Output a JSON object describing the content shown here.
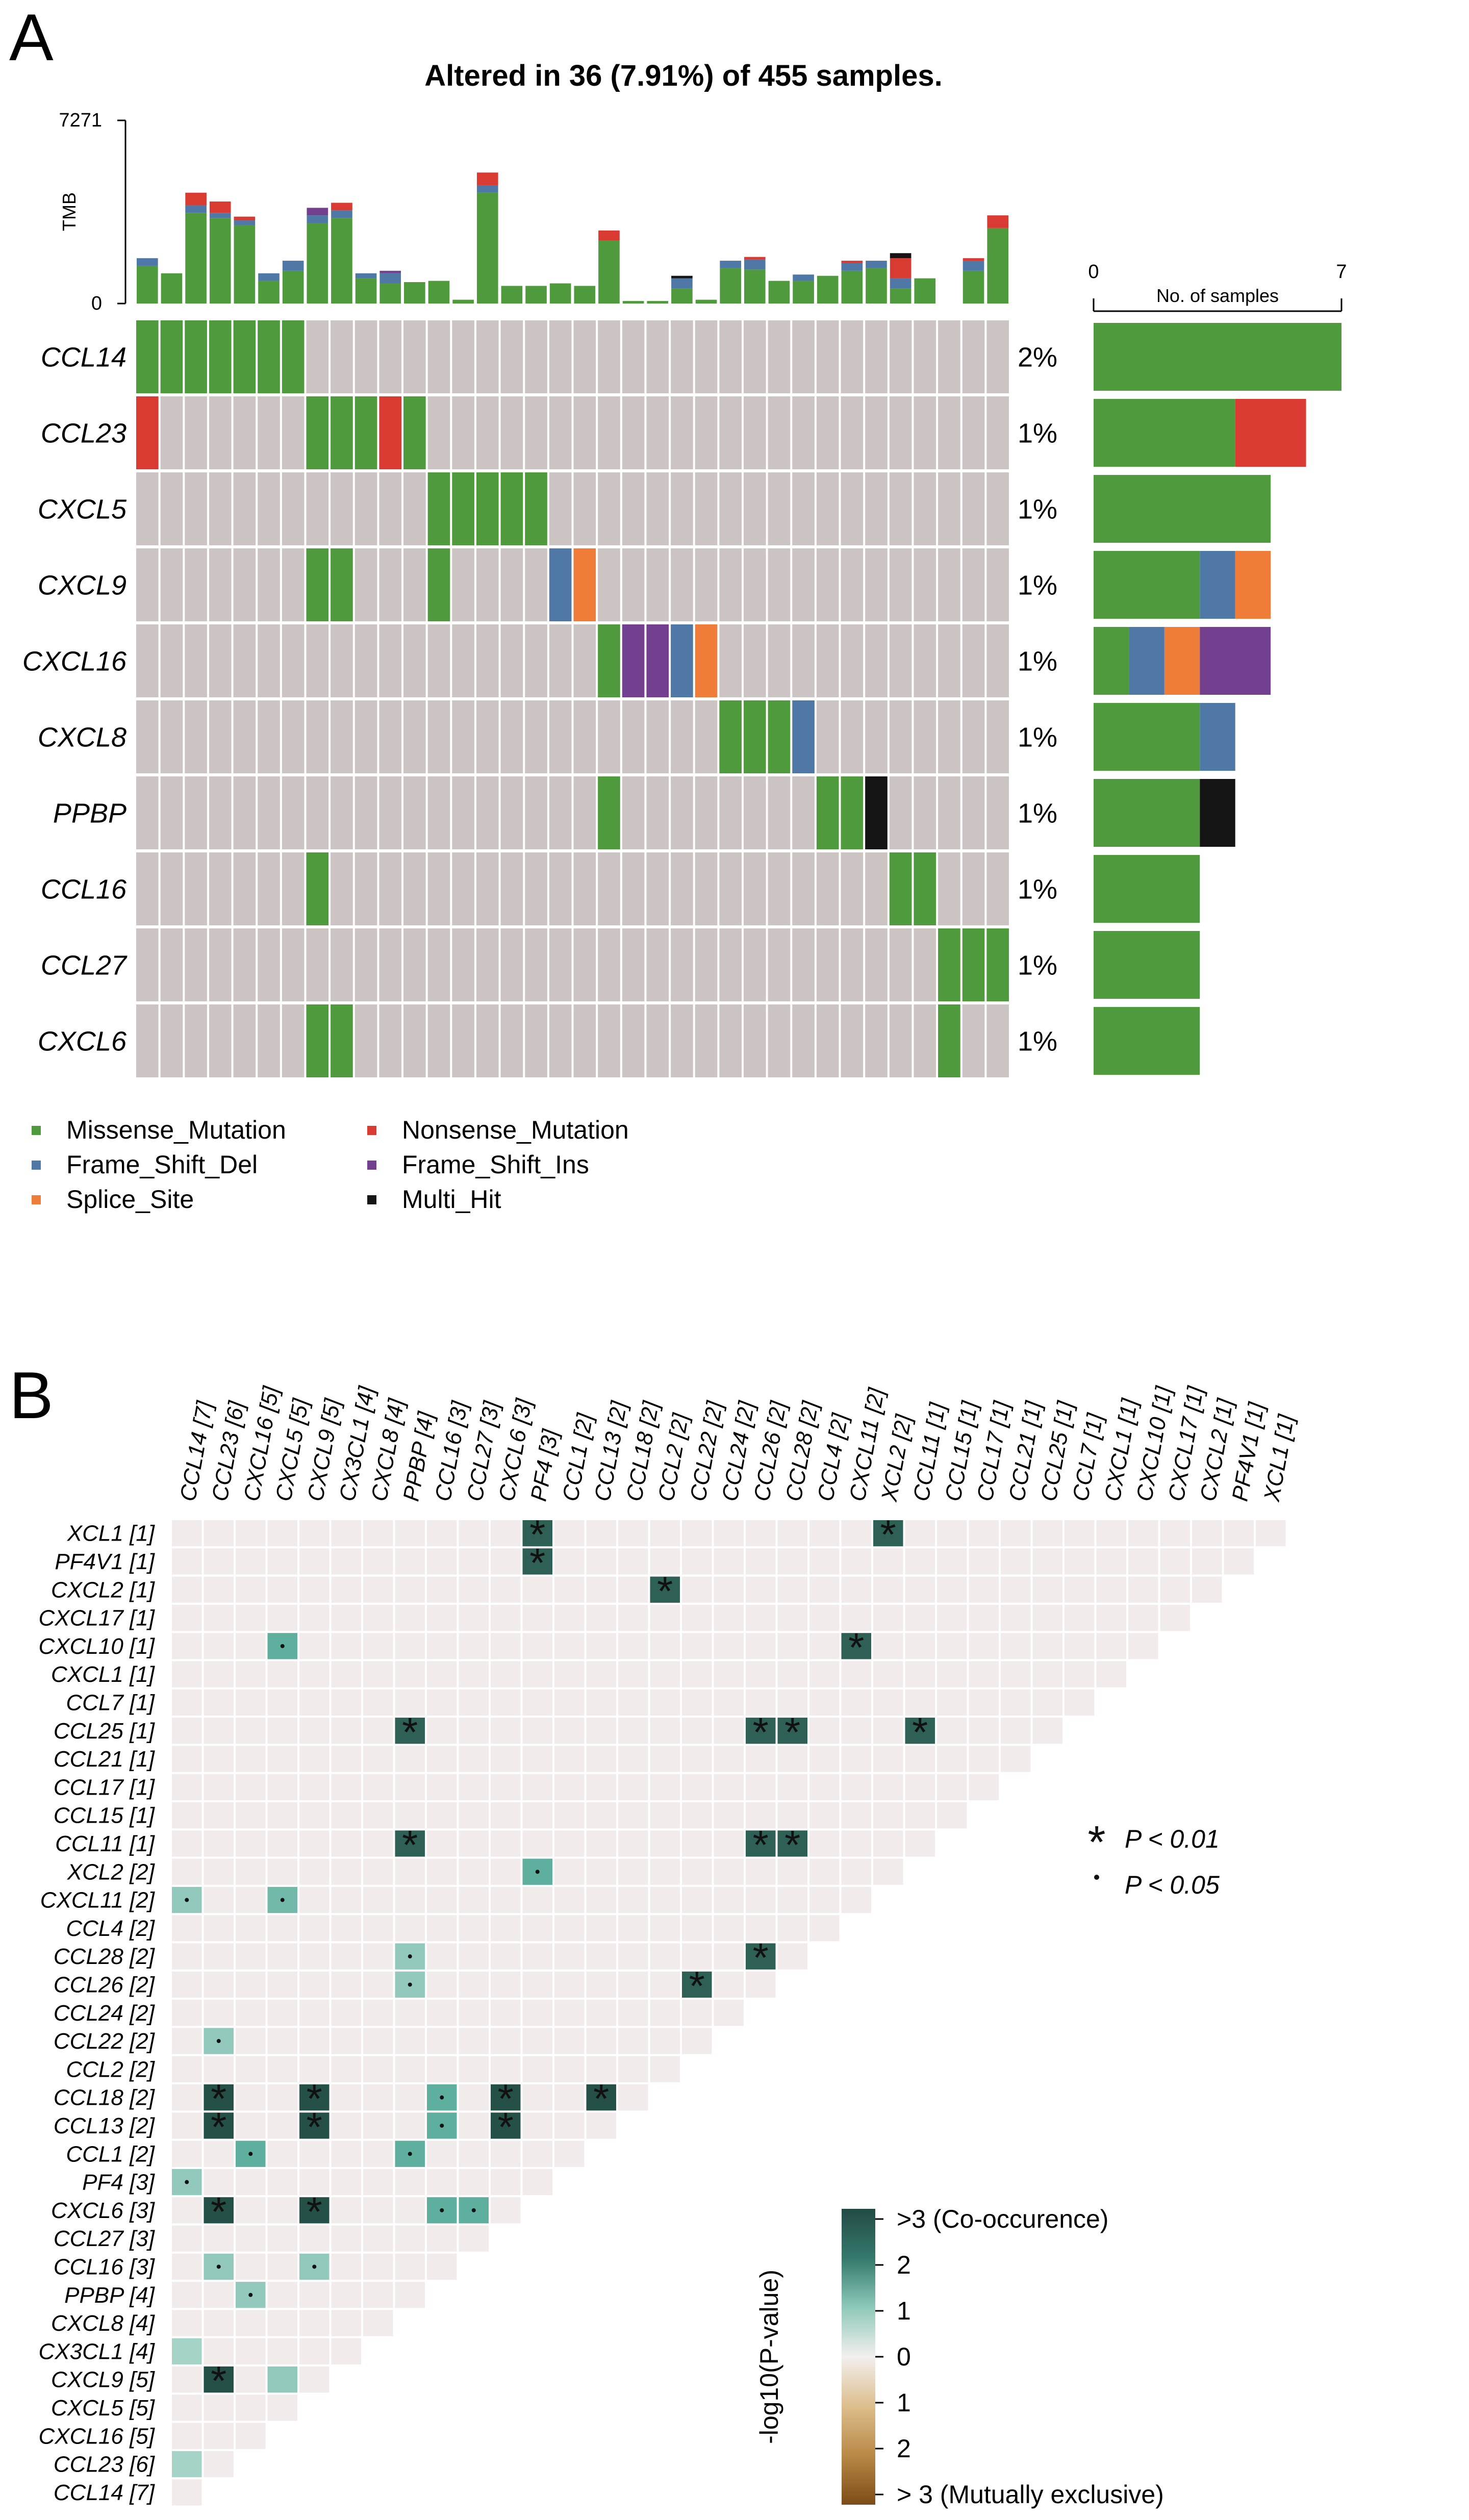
{
  "figure": {
    "panel_a_label": "A",
    "panel_b_label": "B"
  },
  "colors": {
    "Missense_Mutation": "#4f9a3c",
    "Nonsense_Mutation": "#d93a32",
    "Frame_Shift_Del": "#4f78a6",
    "Frame_Shift_Ins": "#733f8f",
    "Splice_Site": "#ef7d39",
    "Multi_Hit": "#141414",
    "background": "#cbc4c3",
    "matrix_base": "#f1eceb"
  },
  "chart_data": [
    {
      "type": "oncoplot",
      "title": "Altered in 36 (7.91%) of 455 samples.",
      "tmb_axis": {
        "label": "TMB",
        "ticks": [
          "7271",
          "0"
        ],
        "range": [
          0,
          7271
        ]
      },
      "side_axis": {
        "label": "No. of samples",
        "ticks": [
          "0",
          "7"
        ],
        "range": [
          0,
          7
        ]
      },
      "num_samples": 36,
      "genes": [
        "CCL14",
        "CCL23",
        "CXCL5",
        "CXCL9",
        "CXCL16",
        "CXCL8",
        "PPBP",
        "CCL16",
        "CCL27",
        "CXCL6"
      ],
      "percentages": [
        "2%",
        "1%",
        "1%",
        "1%",
        "1%",
        "1%",
        "1%",
        "1%",
        "1%",
        "1%"
      ],
      "mutations": [
        {
          "gene": "CCL14",
          "samples": [
            0,
            1,
            2,
            3,
            4,
            5,
            6
          ],
          "types": [
            "Missense_Mutation",
            "Missense_Mutation",
            "Missense_Mutation",
            "Missense_Mutation",
            "Missense_Mutation",
            "Missense_Mutation",
            "Missense_Mutation"
          ]
        },
        {
          "gene": "CCL23",
          "samples": [
            0,
            7,
            8,
            9,
            10,
            11
          ],
          "types": [
            "Nonsense_Mutation",
            "Missense_Mutation",
            "Missense_Mutation",
            "Missense_Mutation",
            "Nonsense_Mutation",
            "Missense_Mutation"
          ]
        },
        {
          "gene": "CXCL5",
          "samples": [
            12,
            13,
            14,
            15,
            16
          ],
          "types": [
            "Missense_Mutation",
            "Missense_Mutation",
            "Missense_Mutation",
            "Missense_Mutation",
            "Missense_Mutation"
          ]
        },
        {
          "gene": "CXCL9",
          "samples": [
            7,
            8,
            12,
            17,
            18
          ],
          "types": [
            "Missense_Mutation",
            "Missense_Mutation",
            "Missense_Mutation",
            "Frame_Shift_Del",
            "Splice_Site"
          ]
        },
        {
          "gene": "CXCL16",
          "samples": [
            19,
            20,
            21,
            22,
            23
          ],
          "types": [
            "Missense_Mutation",
            "Frame_Shift_Ins",
            "Frame_Shift_Ins",
            "Frame_Shift_Del",
            "Splice_Site"
          ]
        },
        {
          "gene": "CXCL8",
          "samples": [
            24,
            25,
            26,
            27
          ],
          "types": [
            "Missense_Mutation",
            "Missense_Mutation",
            "Missense_Mutation",
            "Frame_Shift_Del"
          ]
        },
        {
          "gene": "PPBP",
          "samples": [
            19,
            28,
            29,
            30
          ],
          "types": [
            "Missense_Mutation",
            "Missense_Mutation",
            "Missense_Mutation",
            "Multi_Hit"
          ]
        },
        {
          "gene": "CCL16",
          "samples": [
            7,
            31,
            32
          ],
          "types": [
            "Missense_Mutation",
            "Missense_Mutation",
            "Missense_Mutation"
          ]
        },
        {
          "gene": "CCL27",
          "samples": [
            33,
            34,
            35
          ],
          "types": [
            "Missense_Mutation",
            "Missense_Mutation",
            "Missense_Mutation"
          ]
        },
        {
          "gene": "CXCL6",
          "samples": [
            7,
            8,
            33
          ],
          "types": [
            "Missense_Mutation",
            "Missense_Mutation",
            "Missense_Mutation"
          ]
        }
      ],
      "tmb_values": [
        [
          1500,
          300,
          0,
          0,
          0,
          0
        ],
        [
          1200,
          0,
          0,
          0,
          0,
          0
        ],
        [
          3600,
          300,
          500,
          0,
          0,
          0
        ],
        [
          3400,
          200,
          450,
          0,
          0,
          0
        ],
        [
          3100,
          200,
          150,
          0,
          0,
          0
        ],
        [
          900,
          300,
          0,
          0,
          0,
          0
        ],
        [
          1300,
          400,
          0,
          0,
          0,
          0
        ],
        [
          3200,
          300,
          0,
          300,
          0,
          0
        ],
        [
          3400,
          300,
          300,
          0,
          0,
          0
        ],
        [
          1000,
          200,
          0,
          0,
          0,
          0
        ],
        [
          800,
          400,
          0,
          100,
          0,
          0
        ],
        [
          850,
          0,
          0,
          0,
          0,
          0
        ],
        [
          900,
          0,
          0,
          0,
          0,
          0
        ],
        [
          150,
          0,
          0,
          0,
          0,
          0
        ],
        [
          4400,
          300,
          500,
          0,
          0,
          0
        ],
        [
          700,
          0,
          0,
          0,
          0,
          0
        ],
        [
          700,
          0,
          0,
          0,
          0,
          0
        ],
        [
          800,
          0,
          0,
          0,
          0,
          0
        ],
        [
          700,
          0,
          0,
          0,
          0,
          0
        ],
        [
          2500,
          0,
          400,
          0,
          0,
          0
        ],
        [
          100,
          0,
          0,
          0,
          0,
          0
        ],
        [
          100,
          0,
          0,
          0,
          0,
          0
        ],
        [
          600,
          400,
          0,
          0,
          0,
          100
        ],
        [
          150,
          0,
          0,
          0,
          0,
          0
        ],
        [
          1400,
          300,
          0,
          0,
          0,
          0
        ],
        [
          1350,
          400,
          100,
          0,
          0,
          0
        ],
        [
          900,
          0,
          0,
          0,
          0,
          0
        ],
        [
          900,
          250,
          0,
          0,
          0,
          0
        ],
        [
          1100,
          0,
          0,
          0,
          0,
          0
        ],
        [
          1300,
          300,
          100,
          0,
          0,
          0
        ],
        [
          1400,
          300,
          0,
          0,
          0,
          0
        ],
        [
          600,
          400,
          800,
          0,
          0,
          200
        ],
        [
          1000,
          0,
          0,
          0,
          0,
          0
        ],
        [
          0,
          0,
          0,
          0,
          0,
          0
        ],
        [
          1300,
          400,
          100,
          0,
          0,
          0
        ],
        [
          3000,
          0,
          500,
          0,
          0,
          0
        ]
      ],
      "tmb_series_order": [
        "Missense_Mutation",
        "Frame_Shift_Del",
        "Nonsense_Mutation",
        "Frame_Shift_Ins",
        "Splice_Site",
        "Multi_Hit"
      ],
      "side_bars": [
        {
          "gene": "CCL14",
          "segments": [
            {
              "type": "Missense_Mutation",
              "count": 7
            }
          ]
        },
        {
          "gene": "CCL23",
          "segments": [
            {
              "type": "Missense_Mutation",
              "count": 4
            },
            {
              "type": "Nonsense_Mutation",
              "count": 2
            }
          ]
        },
        {
          "gene": "CXCL5",
          "segments": [
            {
              "type": "Missense_Mutation",
              "count": 5
            }
          ]
        },
        {
          "gene": "CXCL9",
          "segments": [
            {
              "type": "Missense_Mutation",
              "count": 3
            },
            {
              "type": "Frame_Shift_Del",
              "count": 1
            },
            {
              "type": "Splice_Site",
              "count": 1
            }
          ]
        },
        {
          "gene": "CXCL16",
          "segments": [
            {
              "type": "Missense_Mutation",
              "count": 1
            },
            {
              "type": "Frame_Shift_Del",
              "count": 1
            },
            {
              "type": "Splice_Site",
              "count": 1
            },
            {
              "type": "Frame_Shift_Ins",
              "count": 2
            }
          ]
        },
        {
          "gene": "CXCL8",
          "segments": [
            {
              "type": "Missense_Mutation",
              "count": 3
            },
            {
              "type": "Frame_Shift_Del",
              "count": 1
            }
          ]
        },
        {
          "gene": "PPBP",
          "segments": [
            {
              "type": "Missense_Mutation",
              "count": 3
            },
            {
              "type": "Multi_Hit",
              "count": 1
            }
          ]
        },
        {
          "gene": "CCL16",
          "segments": [
            {
              "type": "Missense_Mutation",
              "count": 3
            }
          ]
        },
        {
          "gene": "CCL27",
          "segments": [
            {
              "type": "Missense_Mutation",
              "count": 3
            }
          ]
        },
        {
          "gene": "CXCL6",
          "segments": [
            {
              "type": "Missense_Mutation",
              "count": 3
            }
          ]
        }
      ],
      "legend": [
        {
          "type": "Missense_Mutation",
          "label": "Missense_Mutation"
        },
        {
          "type": "Nonsense_Mutation",
          "label": "Nonsense_Mutation"
        },
        {
          "type": "Frame_Shift_Del",
          "label": "Frame_Shift_Del"
        },
        {
          "type": "Frame_Shift_Ins",
          "label": "Frame_Shift_Ins"
        },
        {
          "type": "Splice_Site",
          "label": "Splice_Site"
        },
        {
          "type": "Multi_Hit",
          "label": "Multi_Hit"
        }
      ]
    },
    {
      "type": "heatmap",
      "columns": [
        "CCL14 [7]",
        "CCL23 [6]",
        "CXCL16 [5]",
        "CXCL5 [5]",
        "CXCL9 [5]",
        "CX3CL1 [4]",
        "CXCL8 [4]",
        "PPBP [4]",
        "CCL16 [3]",
        "CCL27 [3]",
        "CXCL6 [3]",
        "PF4 [3]",
        "CCL1 [2]",
        "CCL13 [2]",
        "CCL18 [2]",
        "CCL2 [2]",
        "CCL22 [2]",
        "CCL24 [2]",
        "CCL26 [2]",
        "CCL28 [2]",
        "CCL4 [2]",
        "CXCL11 [2]",
        "XCL2 [2]",
        "CCL11 [1]",
        "CCL15 [1]",
        "CCL17 [1]",
        "CCL21 [1]",
        "CCL25 [1]",
        "CCL7 [1]",
        "CXCL1 [1]",
        "CXCL10 [1]",
        "CXCL17 [1]",
        "CXCL2 [1]",
        "PF4V1 [1]",
        "XCL1 [1]"
      ],
      "rows": [
        "XCL1 [1]",
        "PF4V1 [1]",
        "CXCL2 [1]",
        "CXCL17 [1]",
        "CXCL10 [1]",
        "CXCL1 [1]",
        "CCL7 [1]",
        "CCL25 [1]",
        "CCL21 [1]",
        "CCL17 [1]",
        "CCL15 [1]",
        "CCL11 [1]",
        "XCL2 [2]",
        "CXCL11 [2]",
        "CCL4 [2]",
        "CCL28 [2]",
        "CCL26 [2]",
        "CCL24 [2]",
        "CCL22 [2]",
        "CCL2 [2]",
        "CCL18 [2]",
        "CCL13 [2]",
        "CCL1 [2]",
        "PF4 [3]",
        "CXCL6 [3]",
        "CCL27 [3]",
        "CCL16 [3]",
        "PPBP [4]",
        "CXCL8 [4]",
        "CX3CL1 [4]",
        "CXCL9 [5]",
        "CXCL5 [5]",
        "CXCL16 [5]",
        "CCL23 [6]",
        "CCL14 [7]"
      ],
      "value_label": "-log10(P-value)",
      "colorbar_ticks": [
        ">3 (Co-occurence)",
        "2",
        "1",
        "0",
        "1",
        "2",
        "> 3 (Mutually exclusive)"
      ],
      "significance_legend": [
        {
          "symbol": "*",
          "label": "P < 0.01"
        },
        {
          "symbol": "·",
          "label": "P < 0.05"
        }
      ],
      "cells": [
        {
          "row": "XCL1 [1]",
          "col": "PF4 [3]",
          "value": 3,
          "sig": "*"
        },
        {
          "row": "XCL1 [1]",
          "col": "XCL2 [2]",
          "value": 3,
          "sig": "*"
        },
        {
          "row": "PF4V1 [1]",
          "col": "PF4 [3]",
          "value": 3,
          "sig": "*"
        },
        {
          "row": "CXCL2 [1]",
          "col": "CCL2 [2]",
          "value": 3,
          "sig": "*"
        },
        {
          "row": "CXCL10 [1]",
          "col": "CXCL5 [5]",
          "value": 2,
          "sig": "·"
        },
        {
          "row": "CXCL10 [1]",
          "col": "CXCL11 [2]",
          "value": 3,
          "sig": "*"
        },
        {
          "row": "CCL25 [1]",
          "col": "PPBP [4]",
          "value": 3,
          "sig": "*"
        },
        {
          "row": "CCL25 [1]",
          "col": "CCL26 [2]",
          "value": 3,
          "sig": "*"
        },
        {
          "row": "CCL25 [1]",
          "col": "CCL28 [2]",
          "value": 3,
          "sig": "*"
        },
        {
          "row": "CCL25 [1]",
          "col": "CCL11 [1]",
          "value": 3,
          "sig": "*"
        },
        {
          "row": "CCL11 [1]",
          "col": "PPBP [4]",
          "value": 3,
          "sig": "*"
        },
        {
          "row": "CCL11 [1]",
          "col": "CCL26 [2]",
          "value": 3,
          "sig": "*"
        },
        {
          "row": "CCL11 [1]",
          "col": "CCL28 [2]",
          "value": 3,
          "sig": "*"
        },
        {
          "row": "XCL2 [2]",
          "col": "PF4 [3]",
          "value": 2,
          "sig": "·"
        },
        {
          "row": "CXCL11 [2]",
          "col": "CCL14 [7]",
          "value": 1.5,
          "sig": "·"
        },
        {
          "row": "CXCL11 [2]",
          "col": "CXCL5 [5]",
          "value": 1.8,
          "sig": "·"
        },
        {
          "row": "CCL28 [2]",
          "col": "PPBP [4]",
          "value": 1.5,
          "sig": "·"
        },
        {
          "row": "CCL28 [2]",
          "col": "CCL26 [2]",
          "value": 3,
          "sig": "*"
        },
        {
          "row": "CCL26 [2]",
          "col": "PPBP [4]",
          "value": 1.5,
          "sig": "·"
        },
        {
          "row": "CCL26 [2]",
          "col": "CCL22 [2]",
          "value": 3,
          "sig": "*"
        },
        {
          "row": "CCL22 [2]",
          "col": "CCL23 [6]",
          "value": 1.5,
          "sig": "·"
        },
        {
          "row": "CCL18 [2]",
          "col": "CCL23 [6]",
          "value": 3.2,
          "sig": "*"
        },
        {
          "row": "CCL18 [2]",
          "col": "CXCL9 [5]",
          "value": 3.2,
          "sig": "*"
        },
        {
          "row": "CCL18 [2]",
          "col": "CCL16 [3]",
          "value": 2,
          "sig": "·"
        },
        {
          "row": "CCL18 [2]",
          "col": "CXCL6 [3]",
          "value": 3.2,
          "sig": "*"
        },
        {
          "row": "CCL18 [2]",
          "col": "CCL13 [2]",
          "value": 3.2,
          "sig": "*"
        },
        {
          "row": "CCL13 [2]",
          "col": "CCL23 [6]",
          "value": 3.2,
          "sig": "*"
        },
        {
          "row": "CCL13 [2]",
          "col": "CXCL9 [5]",
          "value": 3.2,
          "sig": "*"
        },
        {
          "row": "CCL13 [2]",
          "col": "CCL16 [3]",
          "value": 2,
          "sig": "·"
        },
        {
          "row": "CCL13 [2]",
          "col": "CXCL6 [3]",
          "value": 3.2,
          "sig": "*"
        },
        {
          "row": "CCL1 [2]",
          "col": "CXCL16 [5]",
          "value": 2,
          "sig": "·"
        },
        {
          "row": "CCL1 [2]",
          "col": "PPBP [4]",
          "value": 2,
          "sig": "·"
        },
        {
          "row": "PF4 [3]",
          "col": "CCL14 [7]",
          "value": 1.5,
          "sig": "·"
        },
        {
          "row": "CXCL6 [3]",
          "col": "CCL23 [6]",
          "value": 3.2,
          "sig": "*"
        },
        {
          "row": "CXCL6 [3]",
          "col": "CXCL9 [5]",
          "value": 3.2,
          "sig": "*"
        },
        {
          "row": "CXCL6 [3]",
          "col": "CCL16 [3]",
          "value": 2,
          "sig": "·"
        },
        {
          "row": "CXCL6 [3]",
          "col": "CCL27 [3]",
          "value": 2,
          "sig": "·"
        },
        {
          "row": "CCL16 [3]",
          "col": "CCL23 [6]",
          "value": 1.5,
          "sig": "·"
        },
        {
          "row": "CCL16 [3]",
          "col": "CXCL9 [5]",
          "value": 1.5,
          "sig": "·"
        },
        {
          "row": "PPBP [4]",
          "col": "CXCL16 [5]",
          "value": 1.5,
          "sig": "·"
        },
        {
          "row": "CX3CL1 [4]",
          "col": "CCL14 [7]",
          "value": 1.3,
          "sig": ""
        },
        {
          "row": "CXCL9 [5]",
          "col": "CCL23 [6]",
          "value": 3.2,
          "sig": "*"
        },
        {
          "row": "CXCL9 [5]",
          "col": "CXCL5 [5]",
          "value": 1.5,
          "sig": ""
        },
        {
          "row": "CCL23 [6]",
          "col": "CCL14 [7]",
          "value": 1.3,
          "sig": ""
        }
      ]
    }
  ]
}
